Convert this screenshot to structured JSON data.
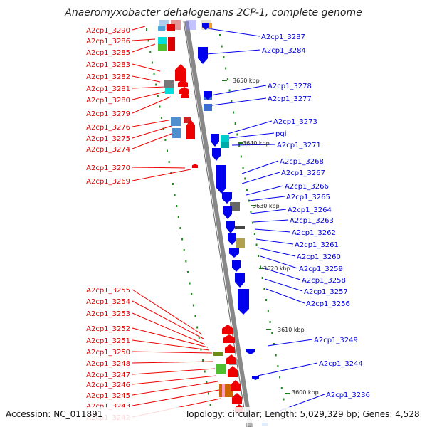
{
  "title": "Anaeromyxobacter dehalogenans 2CP-1, complete genome",
  "footer": {
    "accession": "Accession: NC_011891",
    "summary": "Topology: circular; Length: 5,029,329 bp; Genes: 4,528"
  },
  "colors": {
    "forward_strand": "#ee0000",
    "reverse_strand": "#0000ee",
    "backbone": "#888888",
    "ticks": "#1a8a1a"
  },
  "tick_labels": [
    "3650 kbp",
    "3640 kbp",
    "3630 kbp",
    "3620 kbp",
    "3610 kbp",
    "3600 kbp"
  ],
  "left_genes": [
    "A2cp1_3290",
    "A2cp1_3286",
    "A2cp1_3285",
    "A2cp1_3283",
    "A2cp1_3282",
    "A2cp1_3281",
    "A2cp1_3280",
    "A2cp1_3279",
    "A2cp1_3276",
    "A2cp1_3275",
    "A2cp1_3274",
    "A2cp1_3270",
    "A2cp1_3269",
    "A2cp1_3255",
    "A2cp1_3254",
    "A2cp1_3253",
    "A2cp1_3252",
    "A2cp1_3251",
    "A2cp1_3250",
    "A2cp1_3248",
    "A2cp1_3247",
    "A2cp1_3246",
    "A2cp1_3245",
    "A2cp1_3243",
    "A2cp1_3242"
  ],
  "right_genes": [
    "A2cp1_3287",
    "A2cp1_3284",
    "A2cp1_3278",
    "A2cp1_3277",
    "A2cp1_3273",
    "pgi",
    "A2cp1_3271",
    "A2cp1_3268",
    "A2cp1_3267",
    "A2cp1_3266",
    "A2cp1_3265",
    "A2cp1_3264",
    "A2cp1_3263",
    "A2cp1_3262",
    "A2cp1_3261",
    "A2cp1_3260",
    "A2cp1_3259",
    "A2cp1_3258",
    "A2cp1_3257",
    "A2cp1_3256",
    "A2cp1_3249",
    "A2cp1_3244",
    "A2cp1_3236"
  ]
}
